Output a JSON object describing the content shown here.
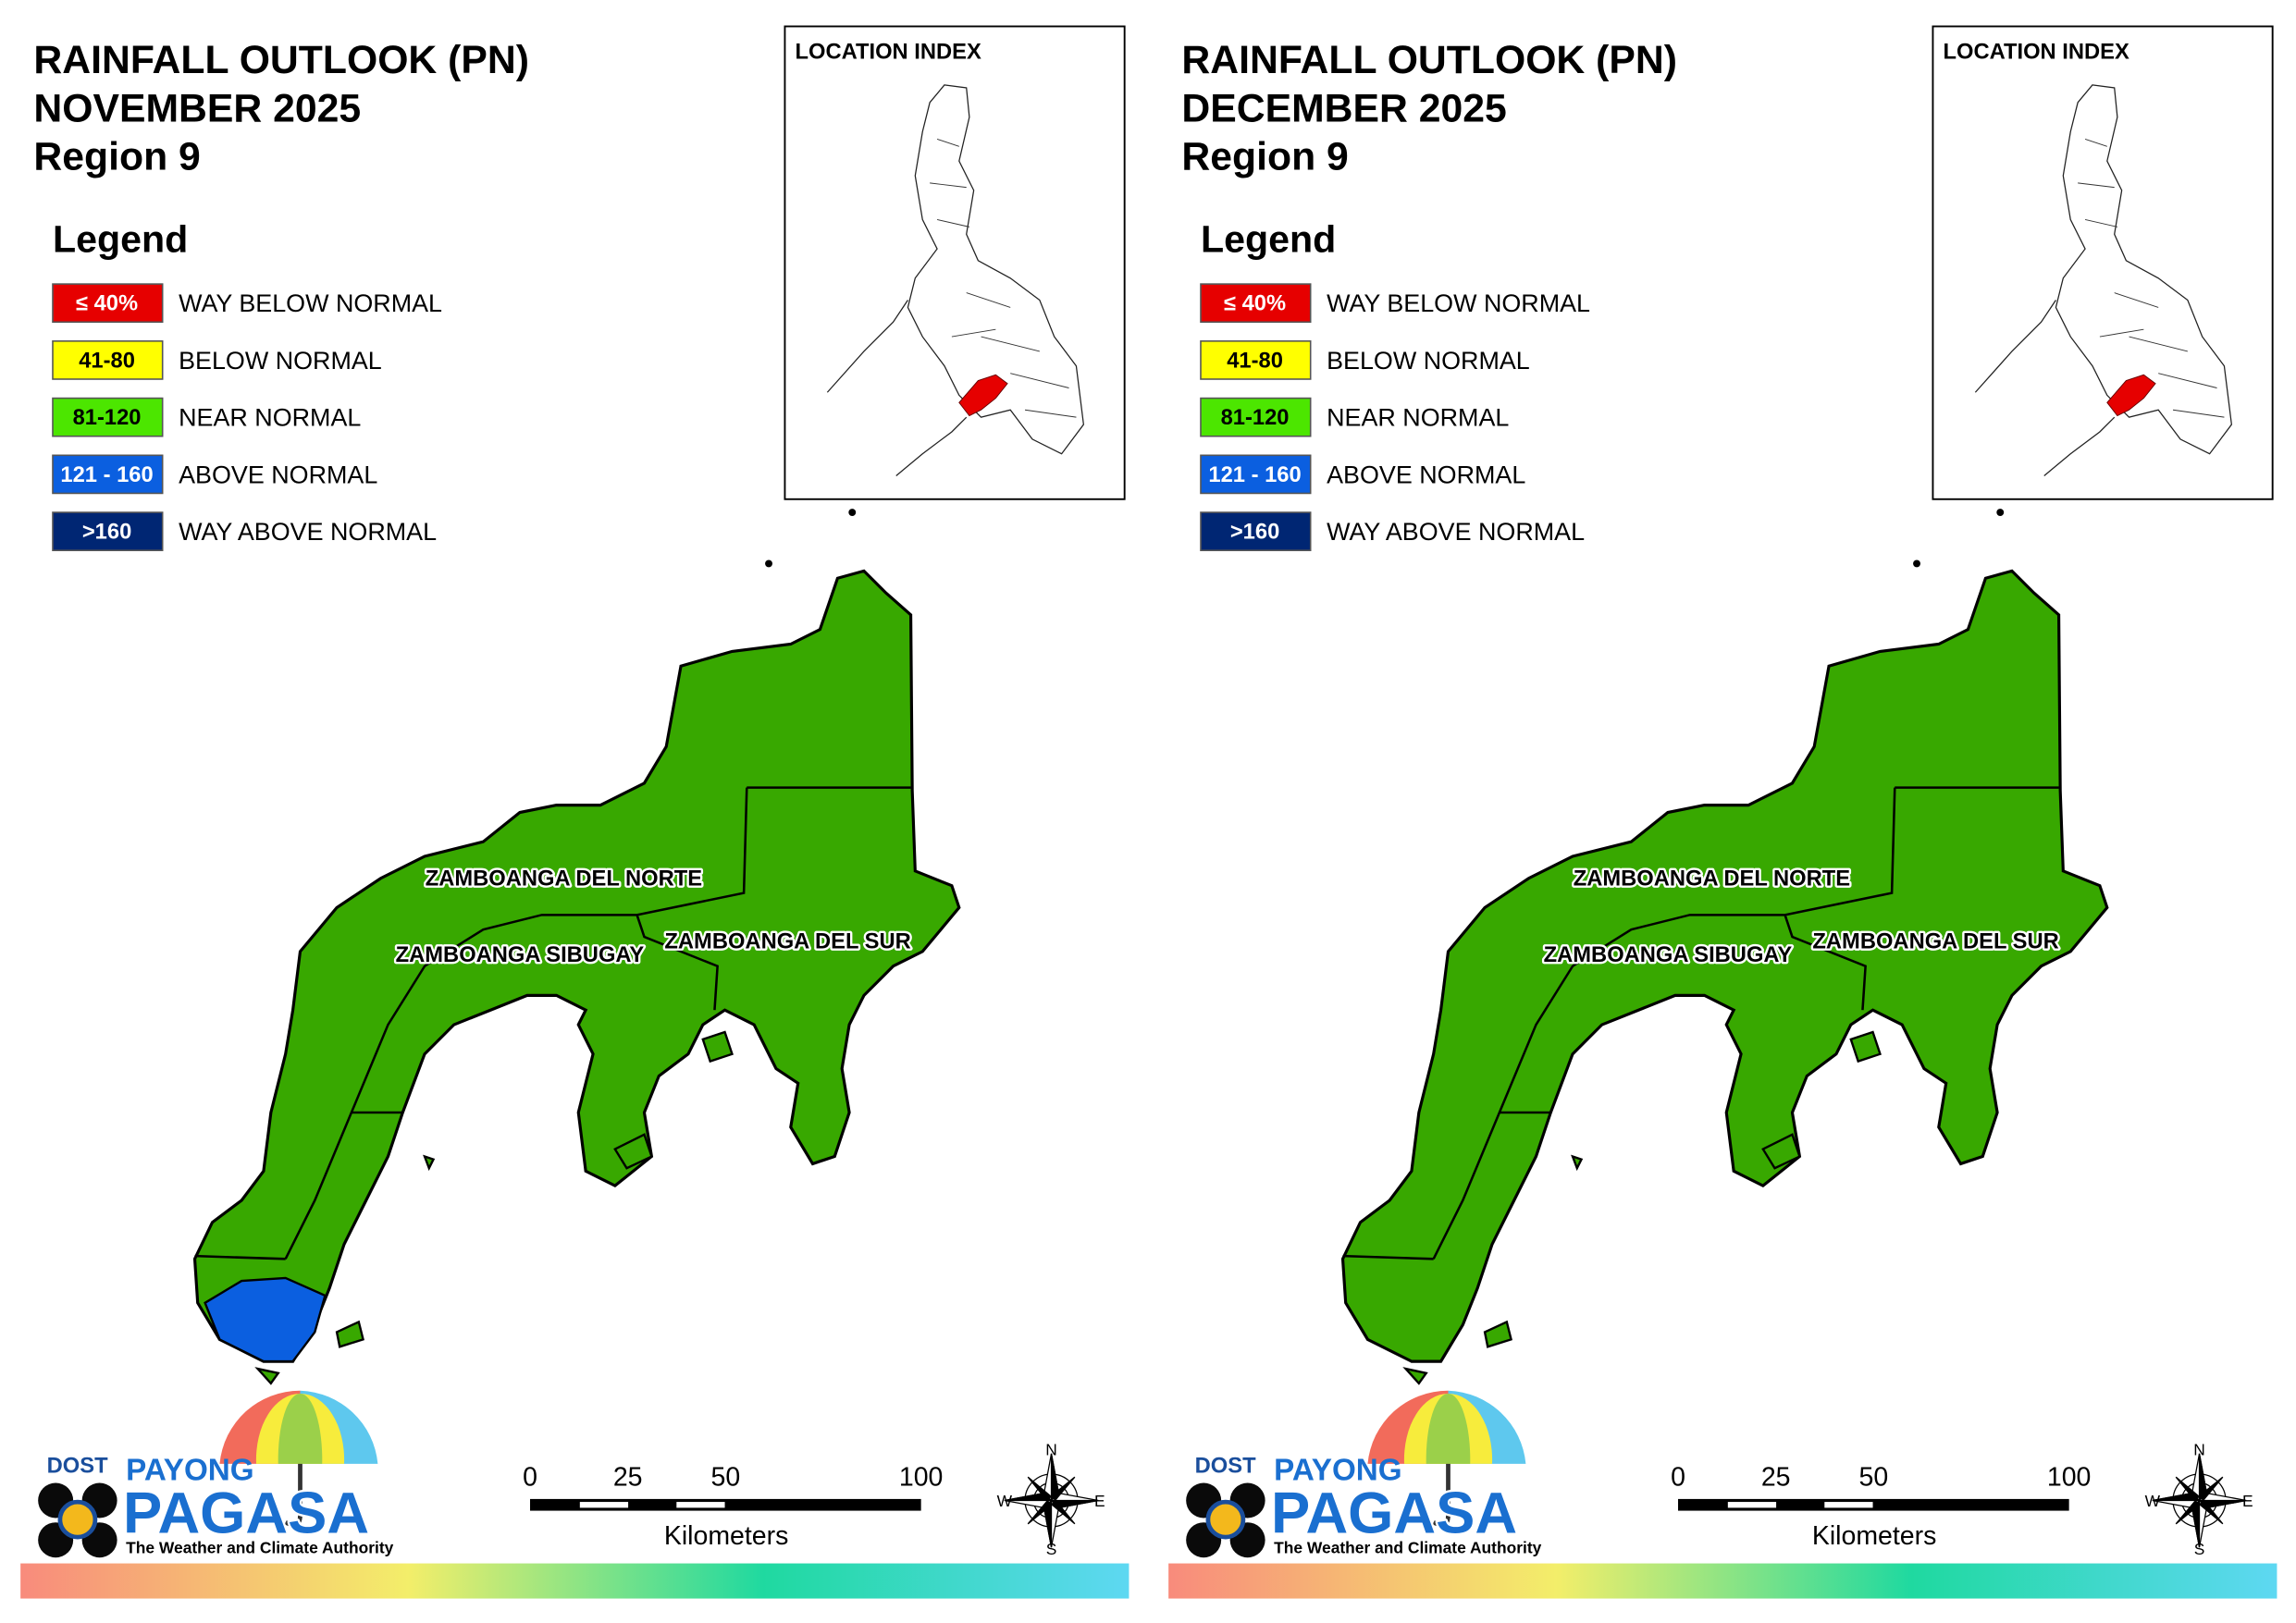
{
  "panels": [
    {
      "title": [
        "RAINFALL OUTLOOK (PN)",
        "NOVEMBER 2025",
        "Region 9"
      ],
      "location_index": "LOCATION INDEX",
      "legend": {
        "title": "Legend",
        "items": [
          {
            "swatch": "≤ 40%",
            "label": "WAY BELOW NORMAL",
            "color": "#e60000",
            "text_color": "#ffffff"
          },
          {
            "swatch": "41-80",
            "label": "BELOW NORMAL",
            "color": "#ffff00",
            "text_color": "#000000"
          },
          {
            "swatch": "81-120",
            "label": "NEAR NORMAL",
            "color": "#4ce600",
            "text_color": "#000000"
          },
          {
            "swatch": "121 - 160",
            "label": "ABOVE NORMAL",
            "color": "#0b5fe0",
            "text_color": "#ffffff"
          },
          {
            "swatch": ">160",
            "label": "WAY ABOVE NORMAL",
            "color": "#002673",
            "text_color": "#ffffff"
          }
        ]
      },
      "provinces": [
        "ZAMBOANGA DEL NORTE",
        "ZAMBOANGA SIBUGAY",
        "ZAMBOANGA DEL SUR"
      ],
      "scale": {
        "ticks": [
          0,
          25,
          50,
          100
        ],
        "unit": "Kilometers"
      },
      "compass": [
        "N",
        "E",
        "S",
        "W"
      ],
      "logo": {
        "dost": "DOST",
        "payong": "PAYONG",
        "pagasa": "PAGASA",
        "tagline": "The Weather and Climate Authority"
      }
    },
    {
      "title": [
        "RAINFALL OUTLOOK (PN)",
        "DECEMBER 2025",
        "Region 9"
      ],
      "location_index": "LOCATION INDEX",
      "legend": {
        "title": "Legend",
        "items": [
          {
            "swatch": "≤ 40%",
            "label": "WAY BELOW NORMAL",
            "color": "#e60000",
            "text_color": "#ffffff"
          },
          {
            "swatch": "41-80",
            "label": "BELOW NORMAL",
            "color": "#ffff00",
            "text_color": "#000000"
          },
          {
            "swatch": "81-120",
            "label": "NEAR NORMAL",
            "color": "#4ce600",
            "text_color": "#000000"
          },
          {
            "swatch": "121 - 160",
            "label": "ABOVE NORMAL",
            "color": "#0b5fe0",
            "text_color": "#ffffff"
          },
          {
            "swatch": ">160",
            "label": "WAY ABOVE NORMAL",
            "color": "#002673",
            "text_color": "#ffffff"
          }
        ]
      },
      "provinces": [
        "ZAMBOANGA DEL NORTE",
        "ZAMBOANGA SIBUGAY",
        "ZAMBOANGA DEL SUR"
      ],
      "scale": {
        "ticks": [
          0,
          25,
          50,
          100
        ],
        "unit": "Kilometers"
      },
      "compass": [
        "N",
        "E",
        "S",
        "W"
      ],
      "logo": {
        "dost": "DOST",
        "payong": "PAYONG",
        "pagasa": "PAGASA",
        "tagline": "The Weather and Climate Authority"
      }
    }
  ]
}
